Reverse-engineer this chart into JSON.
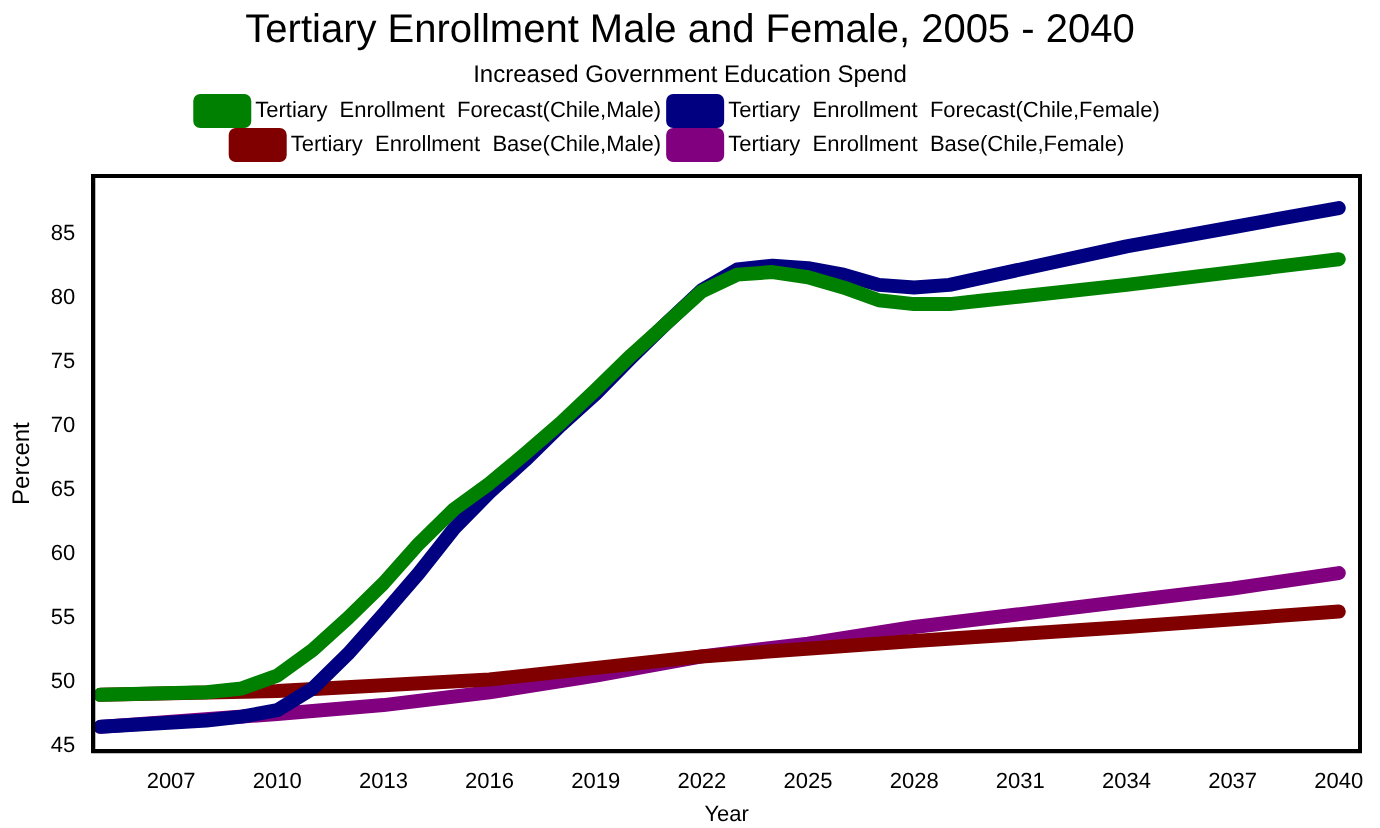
{
  "chart_data": {
    "type": "line",
    "title": "Tertiary Enrollment Male and Female, 2005 - 2040",
    "subtitle": "Increased Government Education Spend",
    "xlabel": "Year",
    "ylabel": "Percent",
    "xlim": [
      2004.8,
      2040.6
    ],
    "xticks": [
      2007,
      2010,
      2013,
      2016,
      2019,
      2022,
      2025,
      2028,
      2031,
      2034,
      2037,
      2040
    ],
    "ylim": [
      44.6,
      89.5
    ],
    "yticks": [
      45,
      50,
      55,
      60,
      65,
      70,
      75,
      80,
      85
    ],
    "grid": false,
    "legend": "top",
    "marker": "none",
    "line_style": "solid",
    "series": [
      {
        "name": "Tertiary  Enrollment  Forecast(Chile,Male)",
        "color": "#008000",
        "x": [
          2005,
          2008,
          2009,
          2010,
          2011,
          2012,
          2013,
          2014,
          2015,
          2016,
          2017,
          2018,
          2019,
          2020,
          2021,
          2022,
          2023,
          2024,
          2025,
          2026,
          2027,
          2028,
          2029,
          2030,
          2031,
          2034,
          2037,
          2040
        ],
        "values": [
          49,
          49.2,
          49.5,
          50.5,
          52.5,
          55,
          57.7,
          60.8,
          63.5,
          65.5,
          67.8,
          70.2,
          72.8,
          75.5,
          78,
          80.5,
          81.8,
          82,
          81.6,
          80.8,
          79.8,
          79.5,
          79.5,
          79.8,
          80.1,
          81,
          82,
          83
        ]
      },
      {
        "name": "Tertiary  Enrollment  Forecast(Chile,Female)",
        "color": "#000080",
        "x": [
          2005,
          2008,
          2009,
          2010,
          2011,
          2012,
          2013,
          2014,
          2015,
          2016,
          2017,
          2018,
          2019,
          2020,
          2021,
          2022,
          2023,
          2024,
          2025,
          2026,
          2027,
          2028,
          2029,
          2030,
          2031,
          2034,
          2037,
          2040
        ],
        "values": [
          46.5,
          47,
          47.3,
          47.8,
          49.5,
          52.2,
          55.3,
          58.5,
          62,
          64.8,
          67.3,
          70,
          72.5,
          75.3,
          78,
          80.6,
          82.2,
          82.5,
          82.3,
          81.8,
          81,
          80.8,
          81,
          81.6,
          82.2,
          84,
          85.5,
          87
        ]
      },
      {
        "name": "Tertiary  Enrollment  Base(Chile,Male)",
        "color": "#800000",
        "x": [
          2005,
          2010,
          2016,
          2022,
          2028,
          2034,
          2040
        ],
        "values": [
          49,
          49.3,
          50.2,
          52,
          53.2,
          54.3,
          55.5
        ]
      },
      {
        "name": "Tertiary  Enrollment  Base(Chile,Female)",
        "color": "#800080",
        "x": [
          2005,
          2010,
          2013,
          2016,
          2019,
          2022,
          2025,
          2028,
          2031,
          2034,
          2037,
          2040
        ],
        "values": [
          46.5,
          47.5,
          48.2,
          49.2,
          50.5,
          52,
          53,
          54.3,
          55.3,
          56.3,
          57.3,
          58.5
        ]
      }
    ]
  }
}
